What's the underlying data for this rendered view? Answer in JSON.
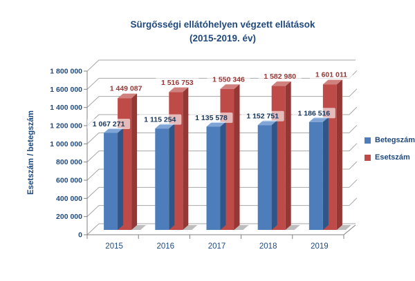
{
  "title": {
    "line1": "Sürgősségi ellátóhelyen végzett ellátások",
    "line2": "(2015-2019. év)"
  },
  "y_axis_title": "Esetszám / betegszám",
  "chart_data": {
    "type": "bar",
    "style": "3d-clustered-column",
    "title": "Sürgősségi ellátóhelyen végzett ellátások (2015-2019. év)",
    "xlabel": "",
    "ylabel": "Esetszám / betegszám",
    "categories": [
      "2015",
      "2016",
      "2017",
      "2018",
      "2019"
    ],
    "series": [
      {
        "name": "Betegszám",
        "values": [
          1067271,
          1115254,
          1135578,
          1152751,
          1186516
        ],
        "value_labels": [
          "1 067 271",
          "1 115 254",
          "1 135 578",
          "1 152 751",
          "1 186 516"
        ],
        "color": "#4D7EBB",
        "color_side": "#2F5689",
        "color_top": "#7FA5D6",
        "label_color": "#17375E"
      },
      {
        "name": "Esetszám",
        "values": [
          1449087,
          1516753,
          1550346,
          1582980,
          1601011
        ],
        "value_labels": [
          "1 449 087",
          "1 516 753",
          "1 550 346",
          "1 582 980",
          "1 601 011"
        ],
        "color": "#BE4B48",
        "color_side": "#953735",
        "color_top": "#D0817E",
        "label_color": "#953735"
      }
    ],
    "ylim": [
      0,
      1800000
    ],
    "ytick_step": 200000,
    "ytick_labels": [
      "0",
      "200 000",
      "400 000",
      "600 000",
      "800 000",
      "1 000 000",
      "1 200 000",
      "1 400 000",
      "1 600 000",
      "1 800 000"
    ],
    "grid": true,
    "legend_position": "right"
  },
  "colors": {
    "text_blue": "#1F497D",
    "grid": "#A6A6A6",
    "axis": "#808080",
    "shadow": "#BDBDBD",
    "label_box": "rgba(255,255,255,0.62)"
  }
}
